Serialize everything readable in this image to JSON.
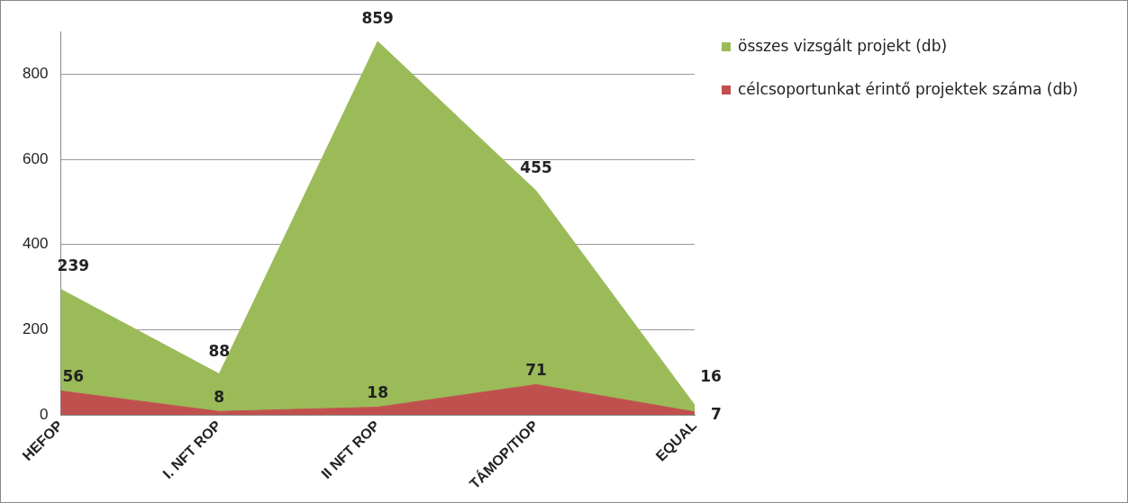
{
  "chart_data": {
    "type": "area",
    "stacked": true,
    "categories": [
      "HEFOP",
      "I. NFT ROP",
      "II NFT ROP",
      "TÁMOP/TIOP",
      "EQUAL"
    ],
    "series": [
      {
        "name": "célcsoportunkat érintő projektek száma (db)",
        "color": "#c0504d",
        "values": [
          56,
          8,
          18,
          71,
          7
        ]
      },
      {
        "name": "összes vizsgált projekt (db)",
        "color": "#9bbb59",
        "values": [
          239,
          88,
          859,
          455,
          16
        ]
      }
    ],
    "ylim": [
      0,
      900
    ],
    "yticks": [
      0,
      200,
      400,
      600,
      800
    ],
    "grid": "y",
    "legend": "right",
    "data_labels": true
  }
}
